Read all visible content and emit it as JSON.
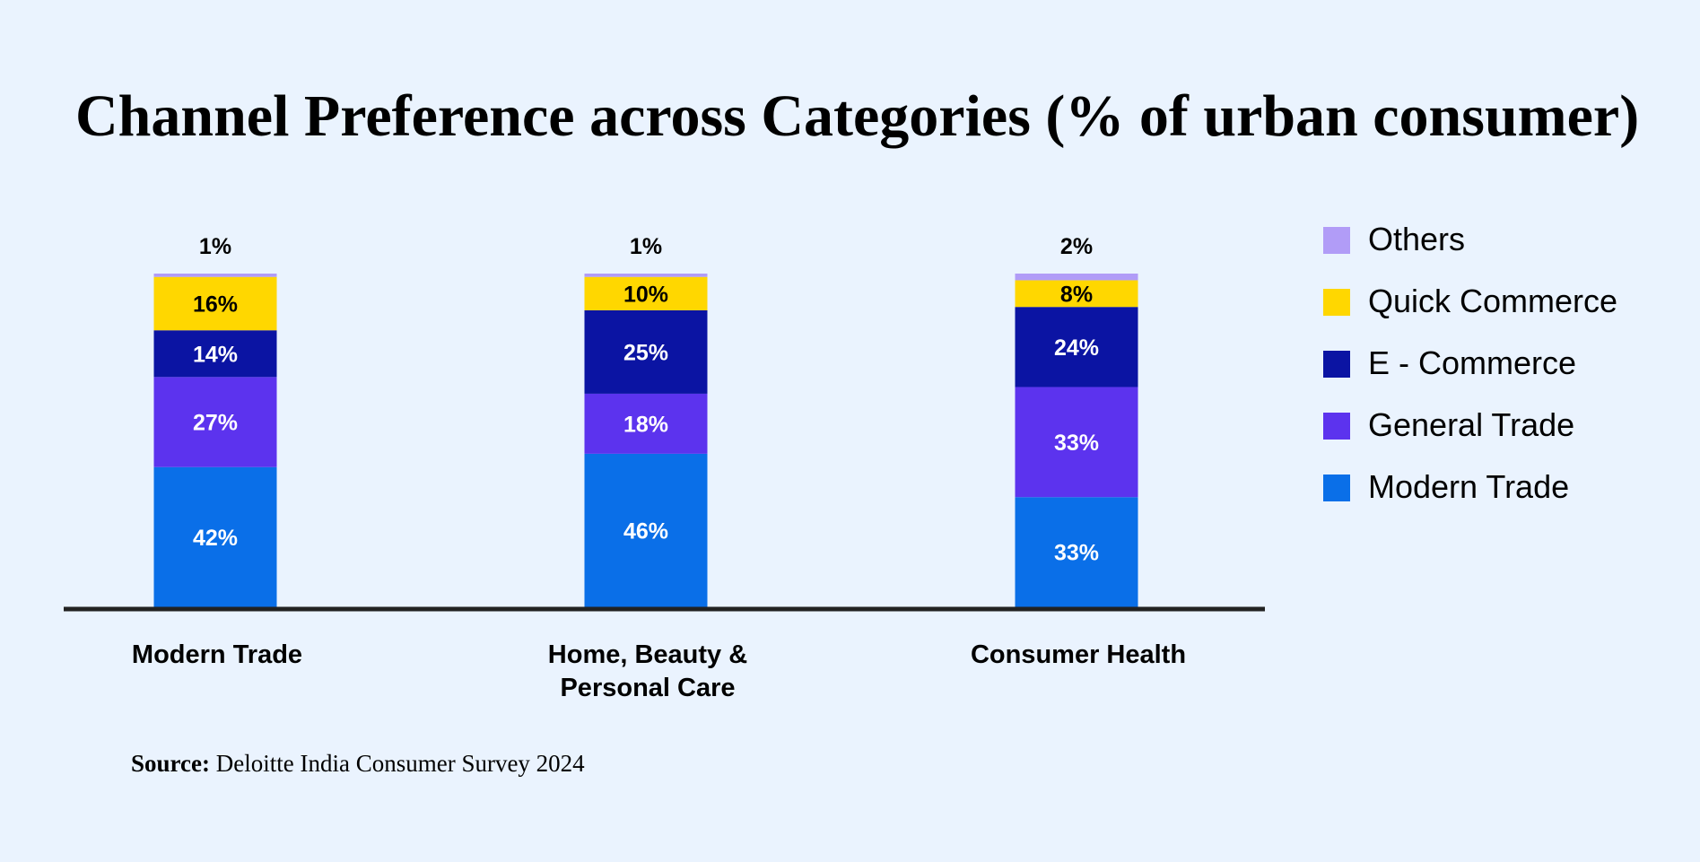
{
  "chart_data": {
    "type": "bar",
    "stacked": true,
    "title": "Channel Preference across Categories (% of urban consumer)",
    "categories": [
      [
        "Modern Trade"
      ],
      [
        "Home, Beauty &",
        "Personal Care"
      ],
      [
        "Consumer Health"
      ]
    ],
    "series": [
      {
        "name": "Modern Trade",
        "color": "#0a6fe8",
        "values": [
          42,
          46,
          33
        ],
        "labels": [
          "42%",
          "46%",
          "33%"
        ]
      },
      {
        "name": "General Trade",
        "color": "#5c33ee",
        "values": [
          27,
          18,
          33
        ],
        "labels": [
          "27%",
          "18%",
          "33%"
        ]
      },
      {
        "name": "E - Commerce",
        "color": "#0b14a3",
        "values": [
          14,
          25,
          24
        ],
        "labels": [
          "14%",
          "25%",
          "24%"
        ]
      },
      {
        "name": "Quick Commerce",
        "color": "#ffd700",
        "values": [
          16,
          10,
          8
        ],
        "labels": [
          "16%",
          "10%",
          "8%"
        ]
      },
      {
        "name": "Others",
        "color": "#b19cf7",
        "values": [
          1,
          1,
          2
        ],
        "labels": [
          "1%",
          "1%",
          "2%"
        ]
      }
    ],
    "legend_order": [
      "Others",
      "Quick Commerce",
      "E - Commerce",
      "General Trade",
      "Modern Trade"
    ],
    "legend": "right",
    "grid": false
  },
  "source": {
    "label": "Source:",
    "text": "Deloitte India Consumer Survey 2024"
  }
}
